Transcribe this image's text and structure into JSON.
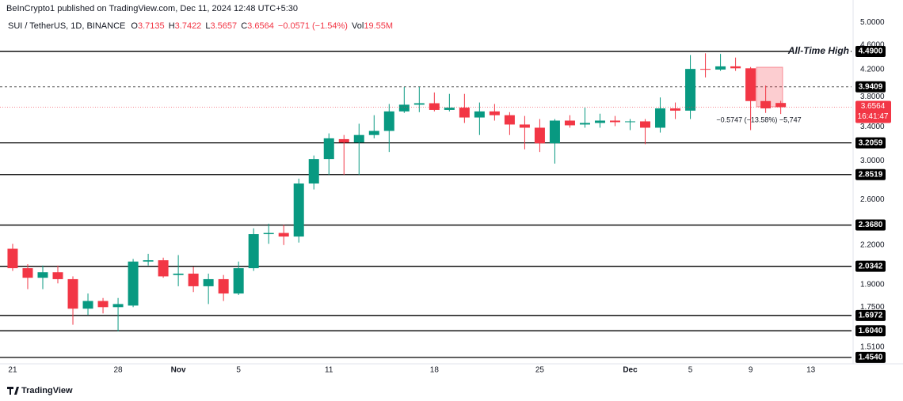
{
  "chart_data": {
    "type": "candlestick",
    "header": "BeInCrypto1 published on TradingView.com, Dec 11, 2024 12:48 UTC+5:30",
    "legend": {
      "symbol": "SUI / TetherUS, 1D, BINANCE",
      "open_label": "O",
      "open": "3.7135",
      "high_label": "H",
      "high": "3.7422",
      "low_label": "L",
      "low": "3.5657",
      "close_label": "C",
      "close": "3.6564",
      "change": "−0.0571 (−1.54%)",
      "volume_label": "Vol",
      "volume": "19.55M"
    },
    "up_color": "#089981",
    "down_color": "#f23645",
    "log_scale": true,
    "grid": false,
    "ylim": [
      1.42,
      5.15
    ],
    "yticks": [
      {
        "value": 5.0,
        "label": "5.0000"
      },
      {
        "value": 4.6,
        "label": "4.6000"
      },
      {
        "value": 4.2,
        "label": "4.2000"
      },
      {
        "value": 3.8,
        "label": "3.8000"
      },
      {
        "value": 3.4,
        "label": "3.4000"
      },
      {
        "value": 3.0,
        "label": "3.0000"
      },
      {
        "value": 2.6,
        "label": "2.6000"
      },
      {
        "value": 2.2,
        "label": "2.2000"
      },
      {
        "value": 1.9,
        "label": "1.9000"
      },
      {
        "value": 1.75,
        "label": "1.7500"
      },
      {
        "value": 1.51,
        "label": "1.5100"
      }
    ],
    "xlim": [
      -0.84,
      55.7
    ],
    "xticks": [
      {
        "value": 0,
        "label": "21"
      },
      {
        "value": 7,
        "label": "28"
      },
      {
        "value": 11,
        "label": "Nov"
      },
      {
        "value": 15,
        "label": "5"
      },
      {
        "value": 21,
        "label": "11"
      },
      {
        "value": 28,
        "label": "18"
      },
      {
        "value": 35,
        "label": "25"
      },
      {
        "value": 41,
        "label": "Dec"
      },
      {
        "value": 45,
        "label": "5"
      },
      {
        "value": 49,
        "label": "9"
      },
      {
        "value": 53,
        "label": "13"
      }
    ],
    "open": [
      2.17,
      2.02,
      1.95,
      1.99,
      1.94,
      1.74,
      1.79,
      1.75,
      1.76,
      2.07,
      2.08,
      1.97,
      1.98,
      1.89,
      1.94,
      1.84,
      2.02,
      2.29,
      2.3,
      2.27,
      2.76,
      3.02,
      3.25,
      3.21,
      3.3,
      3.35,
      3.6,
      3.69,
      3.71,
      3.62,
      3.65,
      3.52,
      3.6,
      3.55,
      3.43,
      3.39,
      3.2,
      3.48,
      3.43,
      3.45,
      3.48,
      3.46,
      3.47,
      3.39,
      3.64,
      3.61,
      4.21,
      4.2,
      4.25,
      4.22,
      3.74,
      3.7135
    ],
    "high": [
      2.21,
      2.05,
      2.04,
      2.04,
      1.96,
      1.84,
      1.81,
      1.81,
      2.09,
      2.13,
      2.1,
      2.12,
      2.03,
      1.98,
      1.97,
      2.07,
      2.34,
      2.38,
      2.37,
      2.81,
      3.06,
      3.32,
      3.3,
      3.44,
      3.55,
      3.7,
      3.94,
      3.94,
      3.86,
      3.84,
      3.84,
      3.72,
      3.7,
      3.59,
      3.54,
      3.5,
      3.5,
      3.55,
      3.65,
      3.57,
      3.54,
      3.5,
      3.5,
      3.79,
      3.72,
      4.43,
      4.46,
      4.45,
      4.39,
      4.24,
      3.96,
      3.7422
    ],
    "low": [
      2.0,
      1.87,
      1.87,
      1.91,
      1.64,
      1.7,
      1.71,
      1.6,
      1.75,
      2.04,
      1.95,
      1.89,
      1.85,
      1.77,
      1.79,
      1.83,
      2.0,
      2.21,
      2.2,
      2.22,
      2.7,
      2.85,
      2.85,
      2.85,
      3.26,
      3.1,
      3.58,
      3.59,
      3.6,
      3.6,
      3.45,
      3.3,
      3.48,
      3.3,
      3.13,
      3.1,
      2.97,
      3.39,
      3.39,
      3.39,
      3.41,
      3.36,
      3.19,
      3.33,
      3.5,
      3.5,
      4.08,
      4.18,
      4.18,
      3.36,
      3.58,
      3.5657
    ],
    "close": [
      2.02,
      1.95,
      1.99,
      1.94,
      1.74,
      1.79,
      1.75,
      1.77,
      2.07,
      2.08,
      1.96,
      1.98,
      1.89,
      1.94,
      1.84,
      2.02,
      2.29,
      2.3,
      2.27,
      2.76,
      3.02,
      3.26,
      3.21,
      3.3,
      3.35,
      3.6,
      3.69,
      3.71,
      3.62,
      3.65,
      3.52,
      3.6,
      3.55,
      3.43,
      3.39,
      3.2,
      3.48,
      3.42,
      3.45,
      3.48,
      3.46,
      3.47,
      3.39,
      3.64,
      3.61,
      4.21,
      4.2,
      4.25,
      4.22,
      3.74,
      3.64,
      3.6564
    ],
    "levels": [
      {
        "value": 4.49,
        "label": "4.4900",
        "style": "solid",
        "note": "All-Time High"
      },
      {
        "value": 3.9409,
        "label": "3.9409",
        "style": "dashed"
      },
      {
        "value": 3.2059,
        "label": "3.2059",
        "style": "solid"
      },
      {
        "value": 2.8519,
        "label": "2.8519",
        "style": "solid"
      },
      {
        "value": 2.368,
        "label": "2.3680",
        "style": "solid"
      },
      {
        "value": 2.0342,
        "label": "2.0342",
        "style": "solid"
      },
      {
        "value": 1.6972,
        "label": "1.6972",
        "style": "solid"
      },
      {
        "value": 1.604,
        "label": "1.6040",
        "style": "solid"
      },
      {
        "value": 1.454,
        "label": "1.4540",
        "style": "solid"
      }
    ],
    "last_price": {
      "value": 3.6564,
      "label": "3.6564",
      "countdown": "16:41:47"
    },
    "measure": "−0.5747 (−13.58%) −5,747",
    "footer": "TradingView"
  }
}
